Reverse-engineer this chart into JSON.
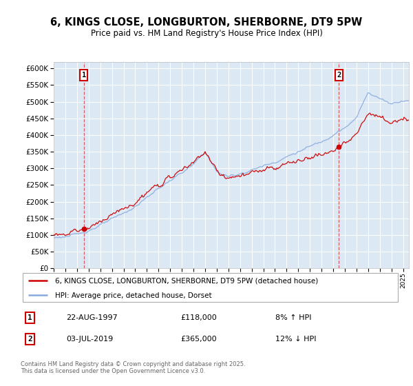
{
  "title": "6, KINGS CLOSE, LONGBURTON, SHERBORNE, DT9 5PW",
  "subtitle": "Price paid vs. HM Land Registry's House Price Index (HPI)",
  "ylim": [
    0,
    620000
  ],
  "ytick_step": 50000,
  "plot_bg_color": "#dce9f5",
  "line1_color": "#cc0000",
  "line2_color": "#88aadd",
  "line1_label": "6, KINGS CLOSE, LONGBURTON, SHERBORNE, DT9 5PW (detached house)",
  "line2_label": "HPI: Average price, detached house, Dorset",
  "sale1_price": 118000,
  "sale1_date_str": "22-AUG-1997",
  "sale1_pct": "8% ↑ HPI",
  "sale2_price": 365000,
  "sale2_date_str": "03-JUL-2019",
  "sale2_pct": "12% ↓ HPI",
  "footer": "Contains HM Land Registry data © Crown copyright and database right 2025.\nThis data is licensed under the Open Government Licence v3.0.",
  "x_start_year": 1995,
  "x_end_year": 2025
}
